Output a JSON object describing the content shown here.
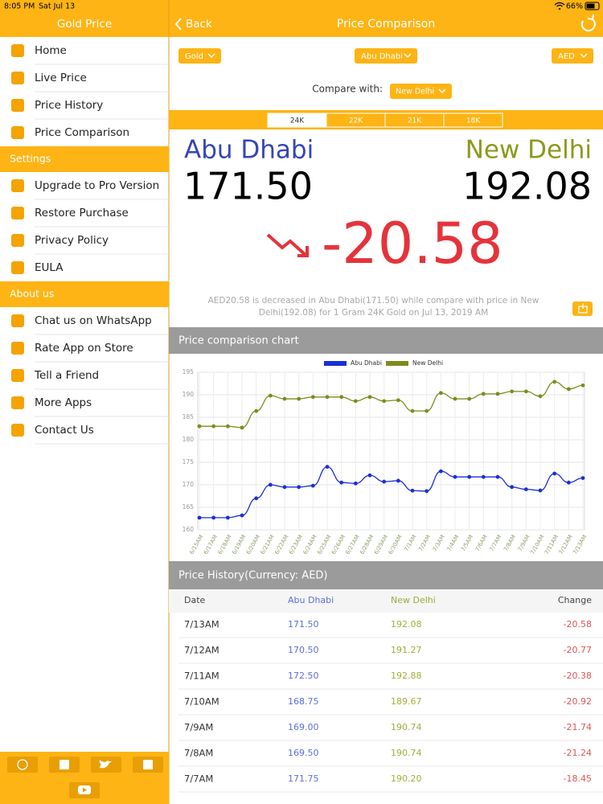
{
  "status_bar": {
    "time": "8:05 PM",
    "date": "Sat Jul 13",
    "battery": "66%"
  },
  "sidebar": {
    "title": "Gold Price",
    "sections": [
      {
        "items": [
          "Home",
          "Live Price",
          "Price History",
          "Price Comparison"
        ]
      },
      {
        "title": "Settings",
        "items": [
          "Upgrade to Pro Version",
          "Restore Purchase",
          "Privacy Policy",
          "EULA"
        ]
      },
      {
        "title": "About us",
        "items": [
          "Chat us on WhatsApp",
          "Rate App on Store",
          "Tell a Friend",
          "More Apps",
          "Contact Us"
        ]
      }
    ]
  },
  "header": {
    "back": "Back",
    "title": "Price Comparison"
  },
  "selectors": {
    "metal": "Gold",
    "city": "Abu Dhabi",
    "currency": "AED",
    "compare_label": "Compare with:",
    "compare_city": "New Delhi"
  },
  "karat_tabs": [
    "24K",
    "22K",
    "21K",
    "18K"
  ],
  "comparison": {
    "city_a": "Abu Dhabi",
    "price_a": "171.50",
    "city_b": "New Delhi",
    "price_b": "192.08",
    "difference": "-20.58",
    "description": "AED20.58 is decreased in Abu Dhabi(171.50) while compare with price in New Delhi(192.08) for 1 Gram 24K Gold on Jul 13, 2019 AM"
  },
  "chart_data": {
    "type": "line",
    "title": "Price comparison chart",
    "categories": [
      "6/15AM",
      "6/17AM",
      "6/18AM",
      "6/19AM",
      "6/20AM",
      "6/21AM",
      "6/22AM",
      "6/23AM",
      "6/24AM",
      "6/25AM",
      "6/26AM",
      "6/27AM",
      "6/28AM",
      "6/29AM",
      "6/30AM",
      "7/1AM",
      "7/2AM",
      "7/3AM",
      "7/4AM",
      "7/5AM",
      "7/6AM",
      "7/7AM",
      "7/8AM",
      "7/9AM",
      "7/10AM",
      "7/11AM",
      "7/12AM",
      "7/13AM"
    ],
    "series": [
      {
        "name": "Abu Dhabi",
        "color": "#1a2fd6",
        "values": [
          162.7,
          162.7,
          162.7,
          163.2,
          167.0,
          170.0,
          169.5,
          169.5,
          169.8,
          174.0,
          170.5,
          170.3,
          172.1,
          170.7,
          170.9,
          168.7,
          168.6,
          173.0,
          171.75,
          171.75,
          171.75,
          171.75,
          169.5,
          169.0,
          168.75,
          172.5,
          170.5,
          171.5
        ]
      },
      {
        "name": "New Delhi",
        "color": "#7f8a1c",
        "values": [
          183.0,
          183.0,
          183.0,
          182.7,
          186.4,
          189.8,
          189.1,
          189.1,
          189.5,
          189.5,
          189.5,
          188.6,
          189.5,
          188.6,
          188.8,
          186.4,
          186.4,
          190.4,
          189.1,
          189.1,
          190.2,
          190.2,
          190.74,
          190.74,
          189.67,
          192.88,
          191.27,
          192.08
        ]
      }
    ],
    "ylim": [
      160,
      195
    ],
    "yticks": [
      160,
      165,
      170,
      175,
      180,
      185,
      190,
      195
    ],
    "grid": true,
    "legend": "top"
  },
  "history": {
    "title": "Price History(Currency: AED)",
    "columns": [
      "Date",
      "Abu Dhabi",
      "New Delhi",
      "Change"
    ],
    "rows": [
      [
        "7/13AM",
        "171.50",
        "192.08",
        "-20.58"
      ],
      [
        "7/12AM",
        "170.50",
        "191.27",
        "-20.77"
      ],
      [
        "7/11AM",
        "172.50",
        "192.88",
        "-20.38"
      ],
      [
        "7/10AM",
        "168.75",
        "189.67",
        "-20.92"
      ],
      [
        "7/9AM",
        "169.00",
        "190.74",
        "-21.74"
      ],
      [
        "7/8AM",
        "169.50",
        "190.74",
        "-21.24"
      ],
      [
        "7/7AM",
        "171.75",
        "190.20",
        "-18.45"
      ]
    ]
  }
}
